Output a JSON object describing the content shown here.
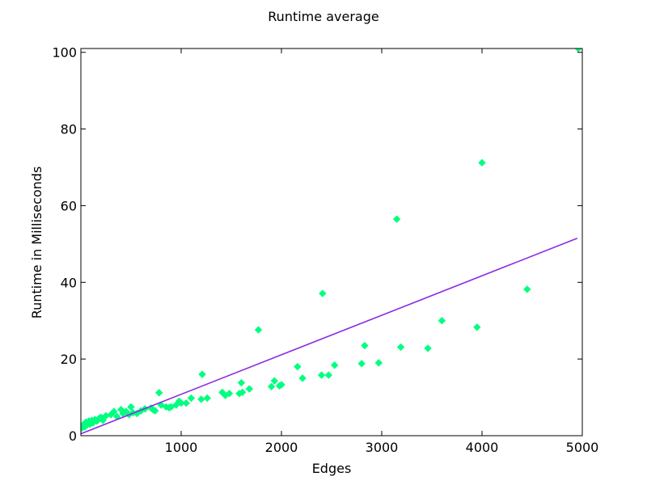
{
  "chart_data": {
    "type": "scatter",
    "title": "Runtime average",
    "xlabel": "Edges",
    "ylabel": "Runtime in Milliseconds",
    "xlim": [
      0,
      5000
    ],
    "ylim": [
      0,
      101
    ],
    "xticks": [
      1000,
      2000,
      3000,
      4000,
      5000
    ],
    "xtick_labels": [
      "1000",
      "2000",
      "3000",
      "4000",
      "5000"
    ],
    "yticks": [
      0,
      20,
      40,
      60,
      80,
      100
    ],
    "ytick_labels": [
      "0",
      "20",
      "40",
      "60",
      "80",
      "100"
    ],
    "grid": false,
    "colors": {
      "points": "#00ff80",
      "trend": "#8a2be2"
    },
    "series": [
      {
        "type": "scatter",
        "x": [
          10,
          20,
          30,
          40,
          50,
          60,
          70,
          80,
          90,
          100,
          110,
          120,
          140,
          160,
          180,
          200,
          220,
          250,
          300,
          330,
          360,
          400,
          420,
          450,
          480,
          500,
          520,
          560,
          600,
          640,
          700,
          720,
          740,
          780,
          800,
          850,
          880,
          900,
          950,
          980,
          1000,
          1050,
          1100,
          1200,
          1210,
          1260,
          1410,
          1440,
          1480,
          1580,
          1600,
          1610,
          1680,
          1770,
          1900,
          1930,
          1980,
          2000,
          2160,
          2210,
          2400,
          2410,
          2470,
          2530,
          2800,
          2830,
          2970,
          3150,
          3190,
          3460,
          3600,
          3950,
          4000,
          4450,
          4960
        ],
        "y": [
          2.0,
          2.5,
          3.0,
          2.3,
          3.5,
          2.8,
          3.2,
          3.8,
          3.0,
          3.5,
          4.0,
          3.3,
          4.2,
          3.8,
          4.5,
          4.8,
          4.0,
          5.2,
          5.5,
          6.3,
          5.0,
          6.8,
          5.8,
          6.3,
          5.5,
          7.5,
          6.0,
          5.8,
          6.5,
          7.0,
          7.2,
          6.8,
          6.5,
          11.2,
          8.0,
          7.5,
          7.3,
          7.5,
          8.0,
          9.0,
          8.5,
          8.5,
          9.8,
          9.5,
          16.0,
          9.8,
          11.3,
          10.5,
          11.0,
          11.0,
          13.8,
          11.3,
          12.2,
          27.6,
          12.8,
          14.3,
          13.0,
          13.3,
          18.0,
          15.0,
          15.8,
          37.1,
          15.8,
          18.4,
          18.8,
          23.5,
          19.0,
          56.5,
          23.1,
          22.8,
          30.0,
          28.3,
          71.2,
          38.2,
          101.0
        ]
      },
      {
        "type": "line",
        "x": [
          0,
          4950
        ],
        "y": [
          0.5,
          51.5
        ]
      }
    ]
  }
}
